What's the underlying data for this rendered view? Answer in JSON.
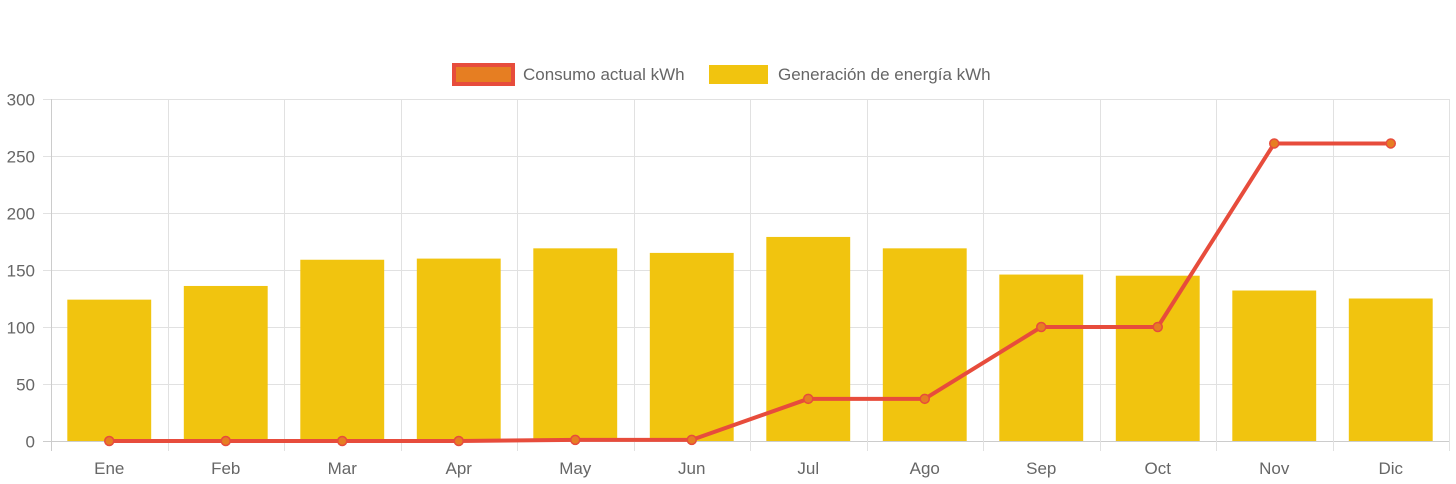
{
  "chart_data": {
    "type": "bar",
    "title": "",
    "xlabel": "",
    "ylabel": "",
    "ylim": [
      0,
      300
    ],
    "yticks": [
      0,
      50,
      100,
      150,
      200,
      250,
      300
    ],
    "grid": true,
    "legend_position": "top-center",
    "categories": [
      "Ene",
      "Feb",
      "Mar",
      "Apr",
      "May",
      "Jun",
      "Jul",
      "Ago",
      "Sep",
      "Oct",
      "Nov",
      "Dic"
    ],
    "series": [
      {
        "name": "Consumo actual kWh",
        "type": "line",
        "color": "#e74c3c",
        "point_color": "#e67e22",
        "values": [
          0,
          0,
          0,
          0,
          1,
          1,
          37,
          37,
          100,
          100,
          261,
          261
        ]
      },
      {
        "name": "Generación de energía kWh",
        "type": "bar",
        "color": "#f1c40f",
        "values": [
          124,
          136,
          159,
          160,
          169,
          165,
          179,
          169,
          146,
          145,
          132,
          125
        ]
      }
    ]
  }
}
